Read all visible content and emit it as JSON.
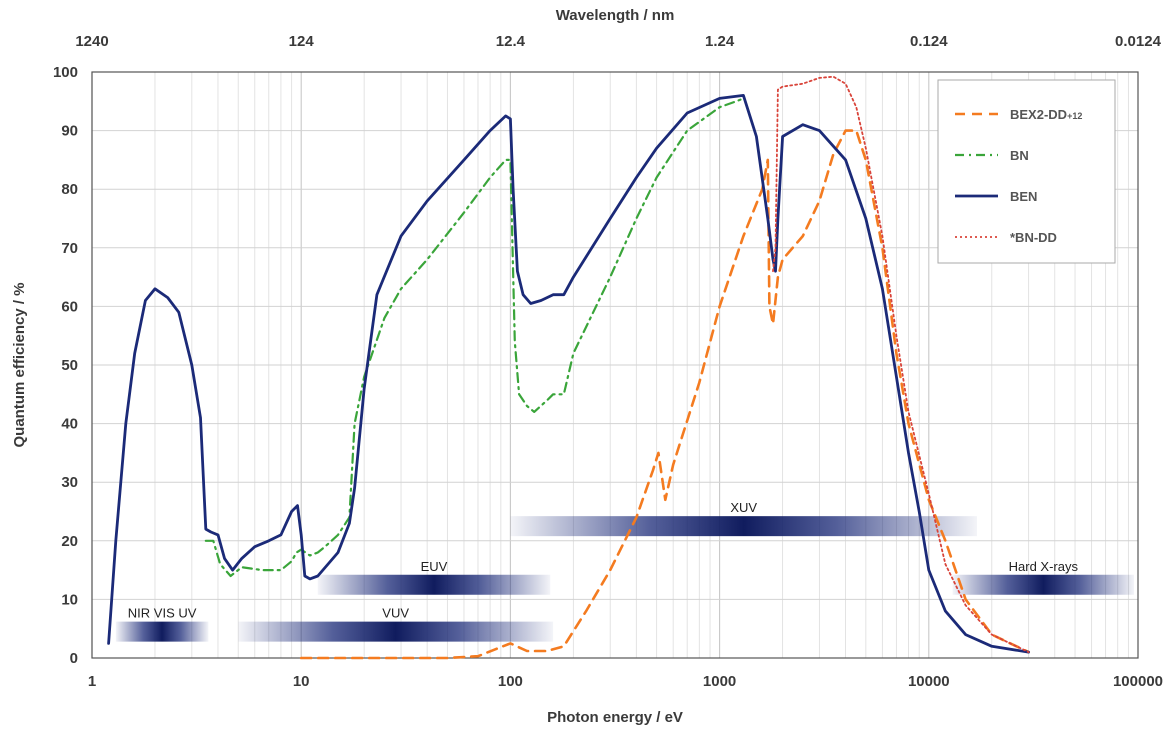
{
  "chart_data": {
    "type": "line",
    "xlabel": "Photon energy / eV",
    "ylabel": "Quantum efficiency / %",
    "top_axis_label": "Wavelength / nm",
    "x_scale": "log",
    "xlim": [
      1,
      100000
    ],
    "ylim": [
      0,
      100
    ],
    "grid": true,
    "legend_position": "top-right",
    "x_ticks": [
      "1",
      "10",
      "100",
      "1000",
      "10000",
      "100000"
    ],
    "top_ticks": [
      "1240",
      "124",
      "12.4",
      "1.24",
      "0.124",
      "0.0124"
    ],
    "y_ticks": [
      "0",
      "10",
      "20",
      "30",
      "40",
      "50",
      "60",
      "70",
      "80",
      "90",
      "100"
    ],
    "series": [
      {
        "name": "BEX2-DD",
        "name_suffix": "+12",
        "color": "#f47b20",
        "dash": "dash",
        "points": [
          [
            10,
            0
          ],
          [
            20,
            0
          ],
          [
            50,
            0
          ],
          [
            70,
            0.3
          ],
          [
            85,
            1.5
          ],
          [
            100,
            2.5
          ],
          [
            120,
            1.2
          ],
          [
            150,
            1.2
          ],
          [
            180,
            2
          ],
          [
            230,
            8
          ],
          [
            300,
            15
          ],
          [
            400,
            24
          ],
          [
            480,
            32
          ],
          [
            510,
            35
          ],
          [
            550,
            27
          ],
          [
            600,
            33
          ],
          [
            800,
            47
          ],
          [
            1000,
            60
          ],
          [
            1300,
            72
          ],
          [
            1600,
            80
          ],
          [
            1700,
            85
          ],
          [
            1730,
            60
          ],
          [
            1800,
            57
          ],
          [
            1900,
            65
          ],
          [
            2000,
            68
          ],
          [
            2500,
            72
          ],
          [
            3000,
            78
          ],
          [
            3500,
            86
          ],
          [
            4000,
            90
          ],
          [
            4500,
            90
          ],
          [
            5000,
            85
          ],
          [
            6000,
            70
          ],
          [
            7000,
            52
          ],
          [
            8000,
            40
          ],
          [
            10000,
            27
          ],
          [
            12000,
            20
          ],
          [
            15000,
            10
          ],
          [
            20000,
            4
          ],
          [
            30000,
            1
          ]
        ]
      },
      {
        "name": "BN",
        "color": "#3aa53a",
        "dash": "dashdot",
        "points": [
          [
            3.5,
            20
          ],
          [
            3.8,
            20
          ],
          [
            4.1,
            16
          ],
          [
            4.6,
            14
          ],
          [
            5.2,
            15.5
          ],
          [
            6.5,
            15
          ],
          [
            8,
            15
          ],
          [
            9,
            16.5
          ],
          [
            9.5,
            18
          ],
          [
            10,
            18.5
          ],
          [
            11,
            17.5
          ],
          [
            12,
            18
          ],
          [
            13,
            19
          ],
          [
            15,
            21
          ],
          [
            17,
            24
          ],
          [
            18,
            40
          ],
          [
            20,
            48
          ],
          [
            25,
            58
          ],
          [
            30,
            63
          ],
          [
            40,
            68
          ],
          [
            60,
            76
          ],
          [
            80,
            82
          ],
          [
            95,
            85
          ],
          [
            100,
            85
          ],
          [
            105,
            54
          ],
          [
            110,
            45
          ],
          [
            120,
            43
          ],
          [
            130,
            42
          ],
          [
            150,
            44
          ],
          [
            160,
            45
          ],
          [
            180,
            45
          ],
          [
            200,
            52
          ],
          [
            300,
            65
          ],
          [
            400,
            75
          ],
          [
            500,
            82
          ],
          [
            700,
            90
          ],
          [
            1000,
            94
          ],
          [
            1200,
            95
          ],
          [
            1300,
            95.5
          ]
        ]
      },
      {
        "name": "BEN",
        "color": "#1b2a78",
        "dash": "solid",
        "points": [
          [
            1.2,
            2.5
          ],
          [
            1.3,
            20
          ],
          [
            1.45,
            40
          ],
          [
            1.6,
            52
          ],
          [
            1.8,
            61
          ],
          [
            2,
            63
          ],
          [
            2.3,
            61.5
          ],
          [
            2.6,
            59
          ],
          [
            3,
            50
          ],
          [
            3.3,
            41
          ],
          [
            3.5,
            22
          ],
          [
            3.7,
            21.5
          ],
          [
            4,
            21
          ],
          [
            4.3,
            17
          ],
          [
            4.7,
            15
          ],
          [
            5.2,
            17
          ],
          [
            6,
            19
          ],
          [
            7,
            20
          ],
          [
            8,
            21
          ],
          [
            9,
            25
          ],
          [
            9.6,
            26
          ],
          [
            10,
            21
          ],
          [
            10.4,
            14
          ],
          [
            11,
            13.5
          ],
          [
            12,
            14
          ],
          [
            15,
            18
          ],
          [
            17,
            23
          ],
          [
            18,
            29
          ],
          [
            20,
            46
          ],
          [
            23,
            62
          ],
          [
            30,
            72
          ],
          [
            40,
            78
          ],
          [
            60,
            85
          ],
          [
            80,
            90
          ],
          [
            95,
            92.5
          ],
          [
            100,
            92
          ],
          [
            103,
            80
          ],
          [
            108,
            66
          ],
          [
            115,
            62
          ],
          [
            125,
            60.5
          ],
          [
            140,
            61
          ],
          [
            160,
            62
          ],
          [
            180,
            62
          ],
          [
            200,
            65
          ],
          [
            300,
            75
          ],
          [
            400,
            82
          ],
          [
            500,
            87
          ],
          [
            700,
            93
          ],
          [
            1000,
            95.5
          ],
          [
            1300,
            96
          ],
          [
            1500,
            89
          ],
          [
            1700,
            75
          ],
          [
            1800,
            68
          ],
          [
            1850,
            66
          ],
          [
            1900,
            75
          ],
          [
            2000,
            89
          ],
          [
            2500,
            91
          ],
          [
            3000,
            90
          ],
          [
            4000,
            85
          ],
          [
            5000,
            75
          ],
          [
            6000,
            63
          ],
          [
            7000,
            48
          ],
          [
            8000,
            35
          ],
          [
            9000,
            25
          ],
          [
            10000,
            15
          ],
          [
            12000,
            8
          ],
          [
            15000,
            4
          ],
          [
            20000,
            2
          ],
          [
            30000,
            1
          ]
        ]
      },
      {
        "name": "*BN-DD",
        "color": "#d9443a",
        "dash": "dot",
        "points": [
          [
            1800,
            66
          ],
          [
            1850,
            70
          ],
          [
            1900,
            97
          ],
          [
            2000,
            97.5
          ],
          [
            2500,
            98
          ],
          [
            3000,
            99
          ],
          [
            3500,
            99.2
          ],
          [
            4000,
            98
          ],
          [
            4500,
            94
          ],
          [
            5000,
            87
          ],
          [
            6000,
            72
          ],
          [
            7000,
            55
          ],
          [
            8000,
            42
          ],
          [
            10000,
            28
          ],
          [
            12000,
            16
          ],
          [
            15000,
            9
          ],
          [
            20000,
            4
          ],
          [
            30000,
            1
          ]
        ]
      }
    ],
    "bands": [
      {
        "label": "NIR VIS UV",
        "x": [
          1.3,
          3.6
        ],
        "y": 4.5
      },
      {
        "label": "VUV",
        "x": [
          5,
          160
        ],
        "y": 4.5
      },
      {
        "label": "EUV",
        "x": [
          12,
          155
        ],
        "y": 12.5
      },
      {
        "label": "XUV",
        "x": [
          100,
          17000
        ],
        "y": 22.5
      },
      {
        "label": "Hard X-rays",
        "x": [
          13000,
          100000
        ],
        "y": 12.5
      }
    ]
  }
}
